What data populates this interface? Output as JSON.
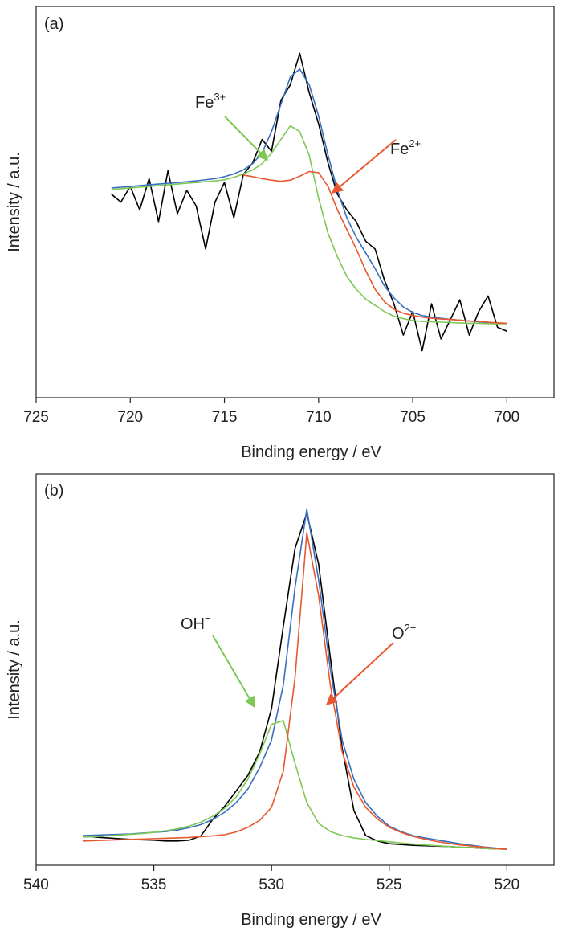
{
  "chart_data": [
    {
      "type": "line",
      "panel_label": "(a)",
      "xlabel": "Binding energy / eV",
      "ylabel": "Intensity / a.u.",
      "xlim": [
        725,
        697.5
      ],
      "xticks": [
        725,
        720,
        715,
        710,
        705,
        700
      ],
      "ylim": [
        0,
        100
      ],
      "annotations": [
        {
          "text": "Fe",
          "sup": "3+"
        },
        {
          "text": "Fe",
          "sup": "2+"
        }
      ],
      "x": [
        721,
        720.5,
        720,
        719.5,
        719,
        718.5,
        718,
        717.5,
        717,
        716.5,
        716,
        715.5,
        715,
        714.5,
        714,
        713.5,
        713,
        712.5,
        712,
        711.5,
        711,
        710.5,
        710,
        709.5,
        709,
        708.5,
        708,
        707.5,
        707,
        706.5,
        706,
        705.5,
        705,
        704.5,
        704,
        703.5,
        703,
        702.5,
        702,
        701.5,
        701,
        700.5,
        700
      ],
      "series": [
        {
          "color": "#000000",
          "values": [
            52,
            50,
            54,
            48,
            56,
            45,
            58,
            47,
            53,
            49,
            38,
            50,
            55,
            46,
            57,
            60,
            66,
            63,
            76,
            80,
            88,
            78,
            70,
            60,
            52,
            48,
            45,
            40,
            38,
            30,
            24,
            16,
            22,
            12,
            24,
            15,
            20,
            25,
            16,
            22,
            26,
            18,
            17
          ]
        },
        {
          "color": "#3a6fc0",
          "values": [
            53.6,
            53.8,
            54,
            54.2,
            54.4,
            54.6,
            54.8,
            55,
            55.2,
            55.4,
            55.7,
            56,
            56.5,
            57.2,
            58.2,
            59.8,
            62.6,
            68,
            75,
            82,
            84,
            80,
            72,
            62,
            53,
            46,
            41,
            37,
            33,
            28.5,
            25.5,
            23.2,
            21.8,
            21,
            20.6,
            20.3,
            20,
            19.8,
            19.6,
            19.4,
            19.2,
            19.1,
            19
          ]
        },
        {
          "color": "#7dc855",
          "values": [
            53.2,
            53.4,
            53.6,
            53.8,
            54,
            54.2,
            54.4,
            54.6,
            54.8,
            55,
            55.2,
            55.4,
            55.7,
            56.3,
            57.2,
            58.2,
            59.8,
            62.5,
            66,
            69.5,
            68,
            62,
            51,
            42,
            36,
            31,
            27.7,
            25.2,
            23.6,
            22,
            20.8,
            20.2,
            19.7,
            19.5,
            19.4,
            19.3,
            19.2,
            19.1,
            19,
            19,
            18.9,
            18.9,
            18.9
          ]
        },
        {
          "color": "#e8572e",
          "values": [
            null,
            null,
            null,
            null,
            null,
            null,
            null,
            null,
            null,
            null,
            null,
            null,
            null,
            null,
            56.9,
            56.5,
            56,
            55.6,
            55.3,
            55.6,
            56.6,
            57.8,
            57.5,
            54,
            48,
            43,
            38,
            32.5,
            27.7,
            24.5,
            22.6,
            21.6,
            21,
            20.6,
            20.3,
            20.1,
            20,
            19.8,
            19.6,
            19.5,
            19.3,
            19.1,
            19
          ]
        }
      ]
    },
    {
      "type": "line",
      "panel_label": "(b)",
      "xlabel": "Binding energy / eV",
      "ylabel": "Intensity / a.u.",
      "xlim": [
        540,
        518
      ],
      "xticks": [
        540,
        535,
        530,
        525,
        520
      ],
      "ylim": [
        0,
        100
      ],
      "annotations": [
        {
          "text": "OH",
          "sup": "−"
        },
        {
          "text": "O",
          "sup": "2−"
        }
      ],
      "x": [
        538,
        537.5,
        537,
        536.5,
        536,
        535.5,
        535,
        534.5,
        534,
        533.5,
        533,
        532.5,
        532,
        531.5,
        531,
        530.5,
        530,
        529.5,
        529,
        528.5,
        528,
        527.5,
        527,
        526.5,
        526,
        525.5,
        525,
        524.5,
        524,
        523.5,
        523,
        522.5,
        522,
        521.5,
        521,
        520.5,
        520
      ],
      "series": [
        {
          "color": "#000000",
          "values": [
            7.6,
            7.2,
            7,
            6.8,
            6.6,
            6.5,
            6.4,
            6.2,
            6.2,
            6.4,
            7.5,
            11.7,
            15,
            19,
            23,
            29,
            40,
            61,
            81,
            90,
            77,
            53,
            30,
            14,
            7.6,
            6.2,
            5.5,
            5.3,
            5.1,
            5,
            4.9,
            4.8,
            4.6,
            4.5,
            4.3,
            4.2,
            4.1
          ]
        },
        {
          "color": "#3a6fc0",
          "values": [
            7.6,
            7.7,
            7.8,
            7.9,
            8,
            8.2,
            8.4,
            8.6,
            9,
            9.6,
            10.4,
            11.7,
            13.5,
            16,
            19.5,
            25,
            32,
            46,
            71,
            91,
            73,
            50,
            32,
            22,
            16,
            12.5,
            10,
            8.6,
            7.6,
            7,
            6.5,
            6,
            5.5,
            5.1,
            4.7,
            4.4,
            4.1
          ]
        },
        {
          "color": "#7dc855",
          "values": [
            7.2,
            7.3,
            7.5,
            7.7,
            7.9,
            8.1,
            8.4,
            8.8,
            9.3,
            10,
            11,
            12.5,
            14.5,
            17.5,
            22,
            28.5,
            36,
            37,
            26,
            16,
            10.7,
            8.6,
            7.6,
            7,
            6.6,
            6.3,
            6,
            5.7,
            5.4,
            5.2,
            5,
            4.8,
            4.6,
            4.5,
            4.3,
            4.2,
            4.1
          ]
        },
        {
          "color": "#e8572e",
          "values": [
            6.2,
            6.3,
            6.4,
            6.5,
            6.6,
            6.7,
            6.8,
            6.9,
            7,
            7.1,
            7.3,
            7.5,
            7.8,
            8.5,
            9.7,
            11.5,
            14.8,
            24,
            48,
            85,
            69,
            46,
            29,
            20,
            14.8,
            11.8,
            9.7,
            8.4,
            7.4,
            6.7,
            6.1,
            5.6,
            5.2,
            4.9,
            4.6,
            4.3,
            4.1
          ]
        }
      ]
    }
  ]
}
